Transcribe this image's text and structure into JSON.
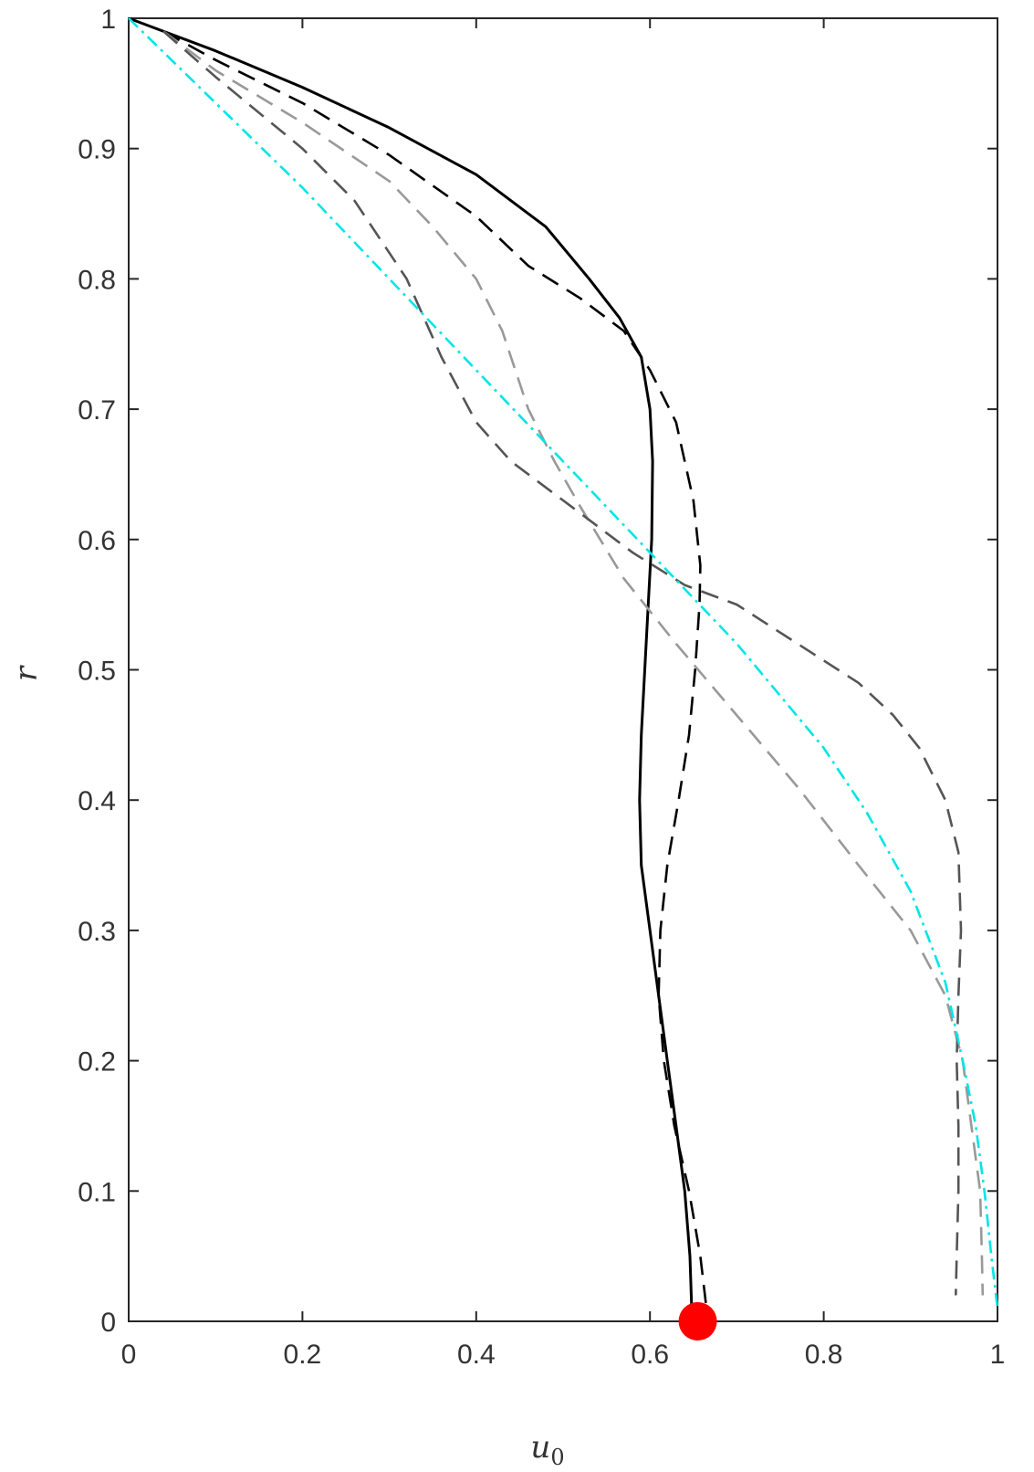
{
  "chart_data": {
    "type": "line",
    "title": "",
    "xlabel": "u",
    "xlabel_subscript": "0",
    "ylabel": "r",
    "xlim": [
      0,
      1
    ],
    "ylim": [
      0,
      1
    ],
    "xticks": [
      "0",
      "0.2",
      "0.4",
      "0.6",
      "0.8",
      "1"
    ],
    "yticks": [
      "0",
      "0.1",
      "0.2",
      "0.3",
      "0.4",
      "0.5",
      "0.6",
      "0.7",
      "0.8",
      "0.9",
      "1"
    ],
    "grid": false,
    "legend": "none",
    "series": [
      {
        "style": "solid",
        "color": "#000000",
        "points": [
          [
            0,
            1
          ],
          [
            0.1,
            0.975
          ],
          [
            0.2,
            0.947
          ],
          [
            0.3,
            0.916
          ],
          [
            0.4,
            0.88
          ],
          [
            0.48,
            0.84
          ],
          [
            0.53,
            0.8
          ],
          [
            0.565,
            0.77
          ],
          [
            0.59,
            0.74
          ],
          [
            0.6,
            0.7
          ],
          [
            0.603,
            0.66
          ],
          [
            0.602,
            0.6
          ],
          [
            0.598,
            0.55
          ],
          [
            0.594,
            0.5
          ],
          [
            0.59,
            0.45
          ],
          [
            0.588,
            0.4
          ],
          [
            0.59,
            0.35
          ],
          [
            0.6,
            0.3
          ],
          [
            0.61,
            0.25
          ],
          [
            0.62,
            0.2
          ],
          [
            0.63,
            0.15
          ],
          [
            0.64,
            0.1
          ],
          [
            0.646,
            0.05
          ],
          [
            0.648,
            0.01
          ]
        ]
      },
      {
        "style": "dashed",
        "color": "#000000",
        "points": [
          [
            0.04,
            0.99
          ],
          [
            0.1,
            0.968
          ],
          [
            0.2,
            0.935
          ],
          [
            0.3,
            0.895
          ],
          [
            0.4,
            0.848
          ],
          [
            0.46,
            0.81
          ],
          [
            0.52,
            0.785
          ],
          [
            0.57,
            0.76
          ],
          [
            0.6,
            0.73
          ],
          [
            0.63,
            0.69
          ],
          [
            0.65,
            0.63
          ],
          [
            0.658,
            0.58
          ],
          [
            0.657,
            0.55
          ],
          [
            0.652,
            0.5
          ],
          [
            0.645,
            0.45
          ],
          [
            0.633,
            0.4
          ],
          [
            0.62,
            0.35
          ],
          [
            0.612,
            0.3
          ],
          [
            0.61,
            0.25
          ],
          [
            0.616,
            0.2
          ],
          [
            0.628,
            0.15
          ],
          [
            0.645,
            0.1
          ],
          [
            0.658,
            0.05
          ],
          [
            0.665,
            0.01
          ]
        ]
      },
      {
        "style": "dashed",
        "color": "#999999",
        "points": [
          [
            0.04,
            0.99
          ],
          [
            0.1,
            0.96
          ],
          [
            0.2,
            0.92
          ],
          [
            0.3,
            0.875
          ],
          [
            0.35,
            0.84
          ],
          [
            0.4,
            0.8
          ],
          [
            0.43,
            0.76
          ],
          [
            0.46,
            0.7
          ],
          [
            0.49,
            0.66
          ],
          [
            0.52,
            0.625
          ],
          [
            0.57,
            0.57
          ],
          [
            0.63,
            0.52
          ],
          [
            0.7,
            0.465
          ],
          [
            0.77,
            0.41
          ],
          [
            0.84,
            0.35
          ],
          [
            0.9,
            0.3
          ],
          [
            0.94,
            0.25
          ],
          [
            0.96,
            0.2
          ],
          [
            0.97,
            0.15
          ],
          [
            0.98,
            0.1
          ],
          [
            0.982,
            0.05
          ],
          [
            0.983,
            0.02
          ]
        ]
      },
      {
        "style": "dashed",
        "color": "#555555",
        "points": [
          [
            0.04,
            0.99
          ],
          [
            0.1,
            0.955
          ],
          [
            0.2,
            0.9
          ],
          [
            0.26,
            0.86
          ],
          [
            0.32,
            0.8
          ],
          [
            0.36,
            0.74
          ],
          [
            0.4,
            0.69
          ],
          [
            0.44,
            0.66
          ],
          [
            0.51,
            0.625
          ],
          [
            0.58,
            0.59
          ],
          [
            0.64,
            0.565
          ],
          [
            0.7,
            0.55
          ],
          [
            0.77,
            0.52
          ],
          [
            0.84,
            0.49
          ],
          [
            0.88,
            0.465
          ],
          [
            0.91,
            0.44
          ],
          [
            0.94,
            0.4
          ],
          [
            0.955,
            0.36
          ],
          [
            0.958,
            0.3
          ],
          [
            0.955,
            0.25
          ],
          [
            0.953,
            0.2
          ],
          [
            0.955,
            0.15
          ],
          [
            0.955,
            0.1
          ],
          [
            0.953,
            0.05
          ],
          [
            0.952,
            0.02
          ]
        ]
      },
      {
        "style": "dashdot",
        "color": "#00e5e5",
        "points": [
          [
            0,
            1
          ],
          [
            0.1,
            0.935
          ],
          [
            0.2,
            0.87
          ],
          [
            0.3,
            0.8
          ],
          [
            0.4,
            0.73
          ],
          [
            0.5,
            0.66
          ],
          [
            0.6,
            0.59
          ],
          [
            0.7,
            0.52
          ],
          [
            0.8,
            0.44
          ],
          [
            0.85,
            0.39
          ],
          [
            0.9,
            0.33
          ],
          [
            0.94,
            0.26
          ],
          [
            0.96,
            0.2
          ],
          [
            0.975,
            0.15
          ],
          [
            0.985,
            0.1
          ],
          [
            0.993,
            0.05
          ],
          [
            1,
            0.01
          ]
        ]
      }
    ],
    "marker": {
      "x": 0.655,
      "y": 0.0,
      "color": "#ff0000"
    }
  }
}
